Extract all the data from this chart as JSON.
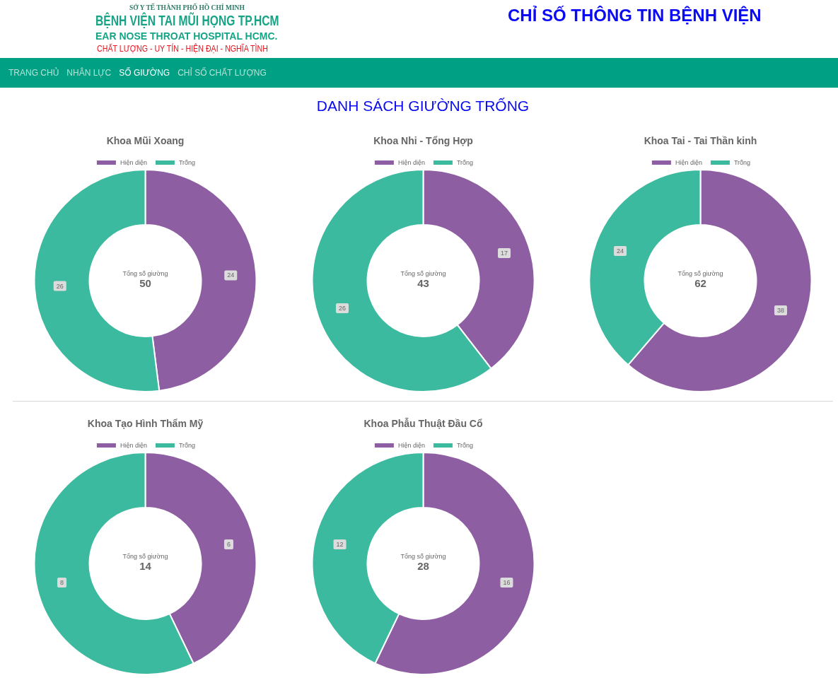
{
  "chart_data": [
    {
      "type": "other",
      "title": "CHỈ SỐ THÔNG TIN BỆNH VIỆN",
      "subtitle": "DANH SÁCH GIƯỜNG TRỐNG",
      "annotations": [
        "SỞ Y TẾ THÀNH PHỐ HỒ CHÍ MINH",
        "BỆNH VIỆN TAI MŨI HỌNG TP.HCM",
        "EAR NOSE THROAT HOSPITAL HCMC.",
        "CHẤT LƯỢNG - UY TÍN - HIỆN ĐẠI - NGHĨA TÌNH",
        "TRANG CHỦ",
        "NHÂN LỰC",
        "SỐ GIƯỜNG",
        "CHỈ SỐ CHẤT LƯỢNG"
      ]
    },
    {
      "type": "donut",
      "title": "Khoa Mũi Xoang",
      "categories": [
        "Hiện diện",
        "Trống"
      ],
      "values": [
        24,
        26
      ],
      "colors": [
        "#8e5ea2",
        "#3cba9f"
      ],
      "legend": "top",
      "data_labels": true,
      "annotations": [
        "Tổng số giường",
        "50"
      ]
    },
    {
      "type": "donut",
      "title": "Khoa Nhi - Tổng Hợp",
      "categories": [
        "Hiện diện",
        "Trống"
      ],
      "values": [
        17,
        26
      ],
      "colors": [
        "#8e5ea2",
        "#3cba9f"
      ],
      "legend": "top",
      "data_labels": true,
      "annotations": [
        "Tổng số giường",
        "43"
      ]
    },
    {
      "type": "donut",
      "title": "Khoa Tai - Tai Thần kinh",
      "categories": [
        "Hiện diện",
        "Trống"
      ],
      "values": [
        38,
        24
      ],
      "colors": [
        "#8e5ea2",
        "#3cba9f"
      ],
      "legend": "top",
      "data_labels": true,
      "annotations": [
        "Tổng số giường",
        "62"
      ]
    },
    {
      "type": "donut",
      "title": "Khoa Tạo Hình Thẩm Mỹ",
      "categories": [
        "Hiện diện",
        "Trống"
      ],
      "values": [
        6,
        8
      ],
      "colors": [
        "#8e5ea2",
        "#3cba9f"
      ],
      "legend": "top",
      "data_labels": true,
      "annotations": [
        "Tổng số giường",
        "14"
      ]
    },
    {
      "type": "donut",
      "title": "Khoa Phẫu Thuật Đầu Cổ",
      "categories": [
        "Hiện diện",
        "Trống"
      ],
      "values": [
        16,
        12
      ],
      "colors": [
        "#8e5ea2",
        "#3cba9f"
      ],
      "legend": "top",
      "data_labels": true,
      "annotations": [
        "Tổng số giường",
        "28"
      ]
    }
  ]
}
